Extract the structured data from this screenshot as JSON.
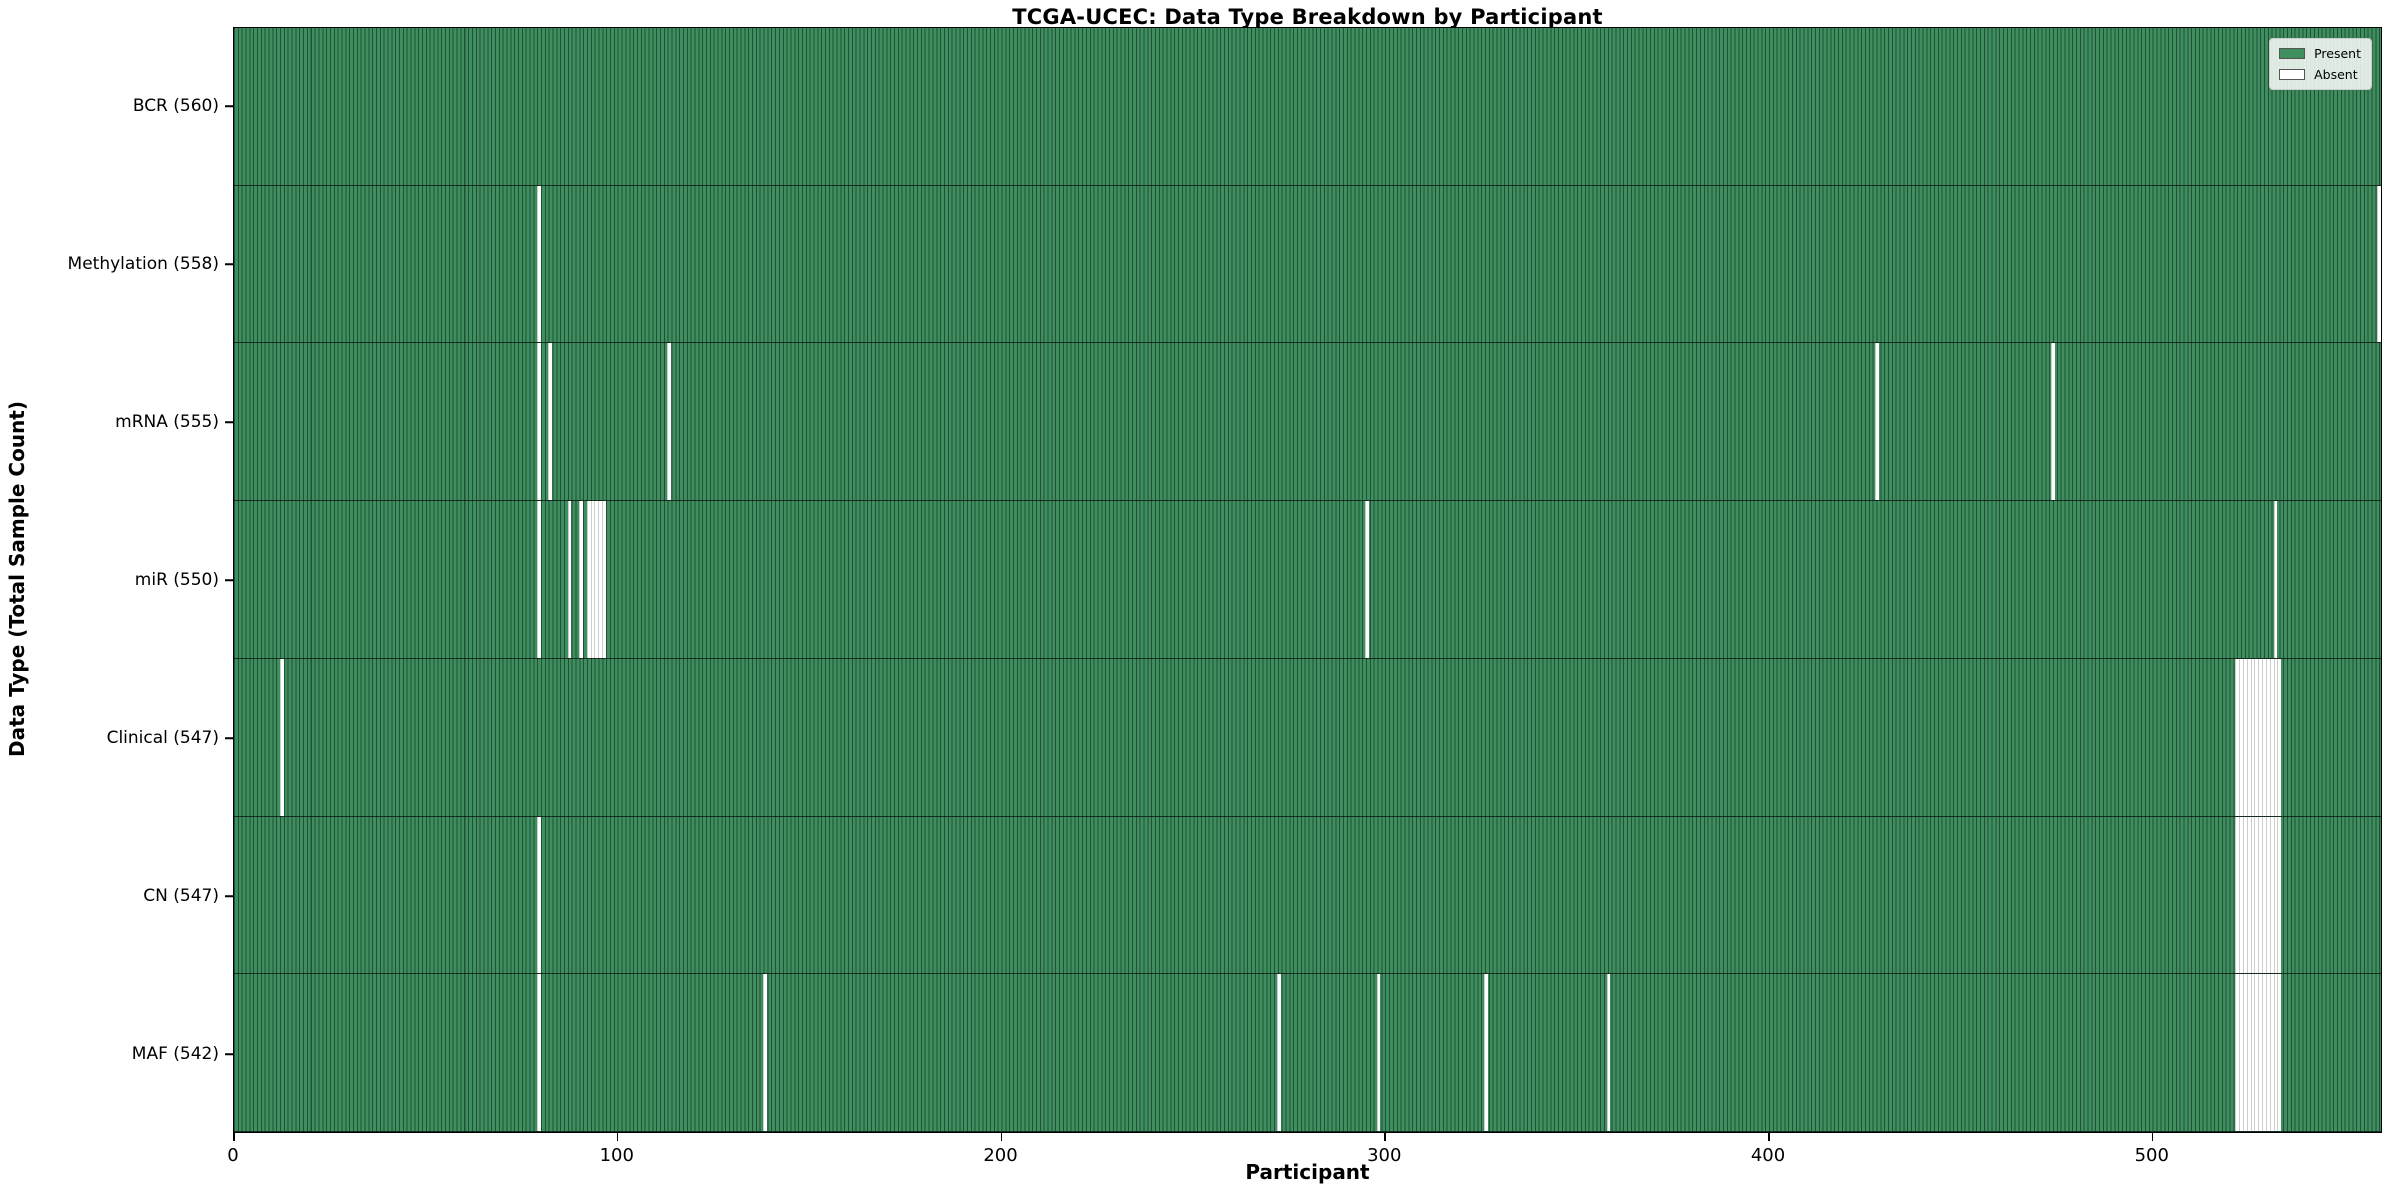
{
  "chart_data": {
    "type": "heatmap",
    "title": "TCGA-UCEC: Data Type Breakdown by Participant",
    "xlabel": "Participant",
    "ylabel": "Data Type (Total Sample Count)",
    "x_ticks": [
      0,
      100,
      200,
      300,
      400,
      500
    ],
    "xlim": [
      0,
      560
    ],
    "n_participants": 560,
    "grid": false,
    "legend_position": "upper right",
    "legend": [
      {
        "label": "Present",
        "color": "#3f8e5e"
      },
      {
        "label": "Absent",
        "color": "#ffffff"
      }
    ],
    "colors": {
      "present_fill": "#3f8e5e",
      "bar_edge": "#21503a",
      "absent_fill": "#ffffff",
      "plot_border": "#000000"
    },
    "rows": [
      {
        "label": "BCR (560)",
        "data_type": "BCR",
        "present_count": 560,
        "absent_count": 0,
        "absent_participants": []
      },
      {
        "label": "Methylation (558)",
        "data_type": "Methylation",
        "present_count": 558,
        "absent_count": 2,
        "absent_participants": [
          79,
          559
        ]
      },
      {
        "label": "mRNA (555)",
        "data_type": "mRNA",
        "present_count": 555,
        "absent_count": 5,
        "absent_participants": [
          79,
          82,
          113,
          428,
          474
        ]
      },
      {
        "label": "miR (550)",
        "data_type": "miR",
        "present_count": 550,
        "absent_count": 10,
        "absent_participants": [
          79,
          87,
          90,
          92,
          93,
          94,
          95,
          96,
          295,
          532
        ]
      },
      {
        "label": "Clinical (547)",
        "data_type": "Clinical",
        "present_count": 547,
        "absent_count": 13,
        "absent_participants": [
          12,
          522,
          523,
          524,
          525,
          526,
          527,
          528,
          529,
          530,
          531,
          532,
          533
        ]
      },
      {
        "label": "CN (547)",
        "data_type": "CN",
        "present_count": 547,
        "absent_count": 13,
        "absent_participants": [
          79,
          522,
          523,
          524,
          525,
          526,
          527,
          528,
          529,
          530,
          531,
          532,
          533
        ]
      },
      {
        "label": "MAF (542)",
        "data_type": "MAF",
        "present_count": 542,
        "absent_count": 18,
        "absent_participants": [
          79,
          138,
          272,
          298,
          326,
          358,
          522,
          523,
          524,
          525,
          526,
          527,
          528,
          529,
          530,
          531,
          532,
          533
        ]
      }
    ]
  }
}
